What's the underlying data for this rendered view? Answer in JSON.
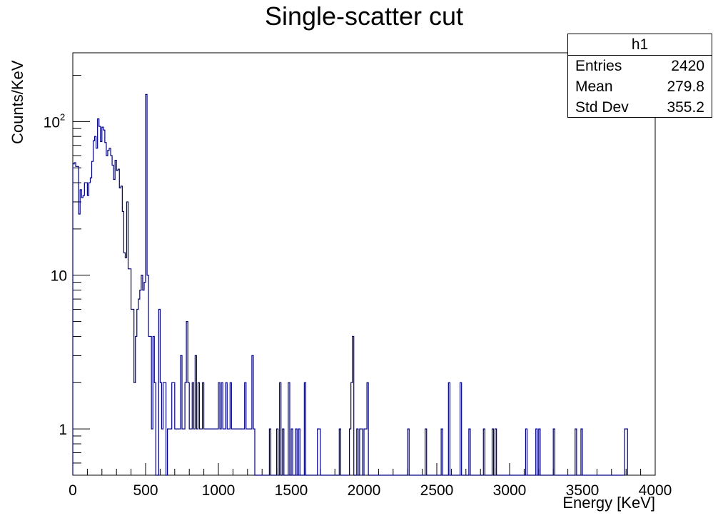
{
  "chart_data": {
    "type": "histogram",
    "title": "Single-scatter cut",
    "xlabel": "Energy [KeV]",
    "ylabel": "Counts/KeV",
    "xlim": [
      0,
      4000
    ],
    "ylim": [
      0.5,
      280
    ],
    "yscale": "log",
    "bin_width": 10,
    "line_color": "#000080",
    "x_ticks": [
      0,
      500,
      1000,
      1500,
      2000,
      2500,
      3000,
      3500,
      4000
    ],
    "y_ticks": [
      {
        "value": 1,
        "label": "1"
      },
      {
        "value": 10,
        "label": "10"
      },
      {
        "value": 100,
        "label": "10",
        "exp": "2"
      }
    ],
    "bins": [
      [
        0,
        53
      ],
      [
        10,
        54
      ],
      [
        20,
        51
      ],
      [
        30,
        51
      ],
      [
        40,
        25
      ],
      [
        50,
        36
      ],
      [
        60,
        32
      ],
      [
        70,
        33
      ],
      [
        80,
        40
      ],
      [
        90,
        40
      ],
      [
        100,
        33
      ],
      [
        110,
        40
      ],
      [
        120,
        43
      ],
      [
        130,
        55
      ],
      [
        140,
        75
      ],
      [
        150,
        80
      ],
      [
        160,
        67
      ],
      [
        170,
        104
      ],
      [
        180,
        93
      ],
      [
        190,
        74
      ],
      [
        200,
        92
      ],
      [
        210,
        88
      ],
      [
        220,
        73
      ],
      [
        230,
        60
      ],
      [
        240,
        65
      ],
      [
        250,
        67
      ],
      [
        260,
        60
      ],
      [
        270,
        52
      ],
      [
        280,
        42
      ],
      [
        290,
        56
      ],
      [
        300,
        48
      ],
      [
        310,
        49
      ],
      [
        320,
        37
      ],
      [
        330,
        38
      ],
      [
        340,
        26
      ],
      [
        350,
        14
      ],
      [
        360,
        13
      ],
      [
        370,
        30
      ],
      [
        380,
        11
      ],
      [
        390,
        11
      ],
      [
        400,
        6
      ],
      [
        410,
        6
      ],
      [
        420,
        2
      ],
      [
        430,
        4
      ],
      [
        440,
        6
      ],
      [
        450,
        7
      ],
      [
        460,
        8
      ],
      [
        470,
        10
      ],
      [
        480,
        8
      ],
      [
        490,
        9
      ],
      [
        500,
        150
      ],
      [
        510,
        10
      ],
      [
        520,
        4
      ],
      [
        530,
        4
      ],
      [
        540,
        1
      ],
      [
        550,
        4
      ],
      [
        560,
        2
      ],
      [
        570,
        0.5
      ],
      [
        580,
        0.5
      ],
      [
        590,
        6
      ],
      [
        600,
        2
      ],
      [
        610,
        1
      ],
      [
        620,
        2
      ],
      [
        630,
        2
      ],
      [
        640,
        0.5
      ],
      [
        650,
        1
      ],
      [
        660,
        1
      ],
      [
        670,
        1
      ],
      [
        680,
        2
      ],
      [
        690,
        2
      ],
      [
        700,
        1
      ],
      [
        710,
        1
      ],
      [
        720,
        1
      ],
      [
        730,
        1
      ],
      [
        740,
        3
      ],
      [
        750,
        1
      ],
      [
        760,
        1
      ],
      [
        770,
        2
      ],
      [
        780,
        5
      ],
      [
        790,
        2
      ],
      [
        800,
        1
      ],
      [
        810,
        1
      ],
      [
        820,
        2
      ],
      [
        830,
        1
      ],
      [
        840,
        3
      ],
      [
        850,
        1
      ],
      [
        860,
        2
      ],
      [
        870,
        1
      ],
      [
        880,
        1
      ],
      [
        890,
        2
      ],
      [
        900,
        1
      ],
      [
        910,
        1
      ],
      [
        920,
        1
      ],
      [
        930,
        1
      ],
      [
        940,
        1
      ],
      [
        950,
        1
      ],
      [
        960,
        1
      ],
      [
        970,
        1
      ],
      [
        980,
        1
      ],
      [
        990,
        1
      ],
      [
        1000,
        2
      ],
      [
        1010,
        1
      ],
      [
        1020,
        2
      ],
      [
        1030,
        1
      ],
      [
        1040,
        1
      ],
      [
        1050,
        2
      ],
      [
        1060,
        1
      ],
      [
        1070,
        1
      ],
      [
        1080,
        2
      ],
      [
        1090,
        1
      ],
      [
        1100,
        1
      ],
      [
        1110,
        1
      ],
      [
        1120,
        1
      ],
      [
        1130,
        1
      ],
      [
        1140,
        1
      ],
      [
        1150,
        1
      ],
      [
        1160,
        1
      ],
      [
        1170,
        1
      ],
      [
        1180,
        2
      ],
      [
        1190,
        1
      ],
      [
        1200,
        1
      ],
      [
        1210,
        1
      ],
      [
        1220,
        1
      ],
      [
        1230,
        3
      ],
      [
        1240,
        1
      ],
      [
        1350,
        1
      ],
      [
        1400,
        1
      ],
      [
        1420,
        2
      ],
      [
        1440,
        1
      ],
      [
        1480,
        2
      ],
      [
        1500,
        1
      ],
      [
        1530,
        1
      ],
      [
        1550,
        1
      ],
      [
        1590,
        2
      ],
      [
        1680,
        1
      ],
      [
        1690,
        1
      ],
      [
        1830,
        1
      ],
      [
        1900,
        1
      ],
      [
        1910,
        2
      ],
      [
        1920,
        4
      ],
      [
        1950,
        1
      ],
      [
        1970,
        1
      ],
      [
        1980,
        1
      ],
      [
        2000,
        1
      ],
      [
        2010,
        1
      ],
      [
        2020,
        2
      ],
      [
        2300,
        1
      ],
      [
        2420,
        1
      ],
      [
        2530,
        1
      ],
      [
        2580,
        2
      ],
      [
        2660,
        2
      ],
      [
        2720,
        1
      ],
      [
        2820,
        1
      ],
      [
        2880,
        1
      ],
      [
        2900,
        1
      ],
      [
        3110,
        1
      ],
      [
        3180,
        1
      ],
      [
        3200,
        1
      ],
      [
        3300,
        1
      ],
      [
        3450,
        1
      ],
      [
        3490,
        1
      ],
      [
        3790,
        1
      ],
      [
        3800,
        1
      ]
    ]
  },
  "stats": {
    "name": "h1",
    "rows": [
      {
        "key": "Entries",
        "value": "2420"
      },
      {
        "key": "Mean",
        "value": "279.8"
      },
      {
        "key": "Std Dev",
        "value": "355.2"
      }
    ]
  }
}
